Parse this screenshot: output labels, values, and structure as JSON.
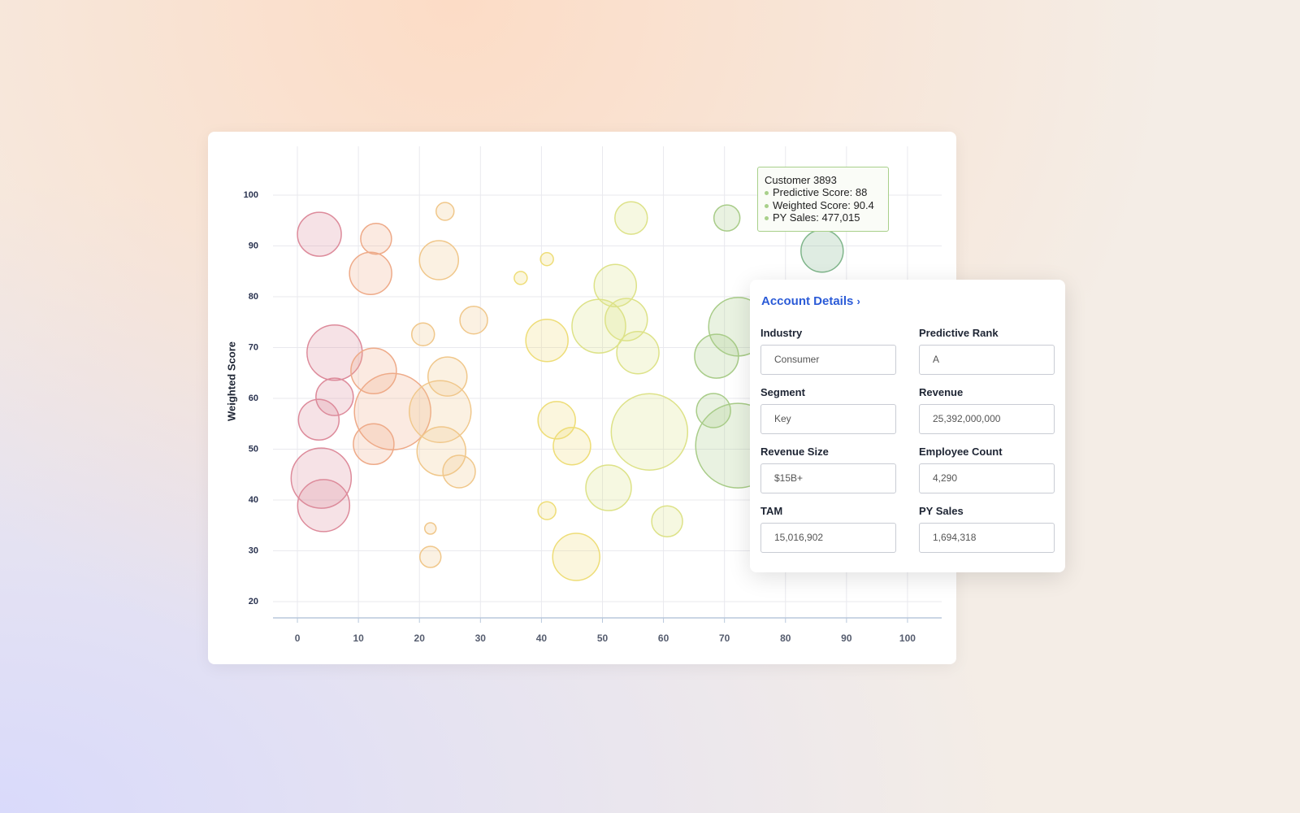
{
  "chart_data": {
    "type": "scatter",
    "y_label": "Weighted Score",
    "xlim": [
      -4,
      105.6
    ],
    "ylim": [
      16.8,
      109.6
    ],
    "xticks": [
      0,
      10,
      20,
      30,
      40,
      50,
      60,
      70,
      80,
      90,
      100
    ],
    "yticks": [
      20,
      30,
      40,
      50,
      60,
      70,
      80,
      90,
      100
    ],
    "grid": true,
    "series": [
      {
        "color": "#dd8b9b",
        "x": [
          3.6,
          6.1,
          6.1,
          3.5,
          3.9,
          4.3
        ],
        "values": [
          92.3,
          69.0,
          60.3,
          55.8,
          44.3,
          38.9
        ],
        "sizes": [
          27,
          34,
          23,
          25,
          37,
          32
        ]
      },
      {
        "color": "#eeaa88",
        "x": [
          12.9,
          12.0,
          12.5,
          15.6,
          12.5
        ],
        "values": [
          91.4,
          84.6,
          65.4,
          57.4,
          51.0
        ],
        "sizes": [
          19,
          26,
          28,
          47,
          25
        ]
      },
      {
        "color": "#f0c78a",
        "x": [
          24.2,
          23.2,
          20.6,
          28.9,
          24.6,
          23.4,
          23.6,
          26.5,
          21.8,
          21.8
        ],
        "values": [
          96.8,
          87.2,
          72.6,
          75.4,
          64.3,
          57.4,
          49.6,
          45.6,
          34.4,
          28.8
        ],
        "sizes": [
          11,
          24,
          14,
          17,
          24,
          38,
          30,
          20,
          7,
          13
        ]
      },
      {
        "color": "#eedd77",
        "x": [
          36.6,
          40.9,
          40.9,
          42.5,
          45.0,
          40.9,
          45.7
        ],
        "values": [
          83.7,
          87.4,
          71.4,
          55.7,
          50.6,
          37.9,
          28.8
        ],
        "sizes": [
          8,
          8,
          26,
          23,
          23,
          11,
          29
        ]
      },
      {
        "color": "#dde288",
        "x": [
          54.7,
          52.1,
          49.4,
          53.9,
          55.8,
          57.7,
          51.0,
          60.6
        ],
        "values": [
          95.5,
          82.2,
          74.2,
          75.5,
          69.0,
          53.4,
          42.4,
          35.8
        ],
        "sizes": [
          20,
          26,
          33,
          26,
          26,
          47,
          28,
          19
        ]
      },
      {
        "color": "#a8cc88",
        "x": [
          70.4,
          72.2,
          68.7,
          68.2,
          72.2
        ],
        "values": [
          95.5,
          74.1,
          68.3,
          57.6,
          50.7
        ],
        "sizes": [
          16,
          36,
          27,
          21,
          52
        ]
      },
      {
        "color": "#7fb58a",
        "x": [
          86.0
        ],
        "values": [
          89.0
        ],
        "sizes": [
          26
        ]
      }
    ]
  },
  "tooltip": {
    "title": "Customer 3893",
    "lines": [
      "Predictive Score: 88",
      "Weighted Score: 90.4",
      "PY Sales: 477,015"
    ]
  },
  "panel": {
    "title": "Account Details",
    "fields": [
      [
        "Industry",
        "Consumer"
      ],
      [
        "Predictive Rank",
        "A"
      ],
      [
        "Segment",
        "Key"
      ],
      [
        "Revenue",
        "25,392,000,000"
      ],
      [
        "Revenue Size",
        "$15B+"
      ],
      [
        "Employee Count",
        "4,290"
      ],
      [
        "TAM",
        "15,016,902"
      ],
      [
        "PY Sales",
        "1,694,318"
      ]
    ]
  }
}
